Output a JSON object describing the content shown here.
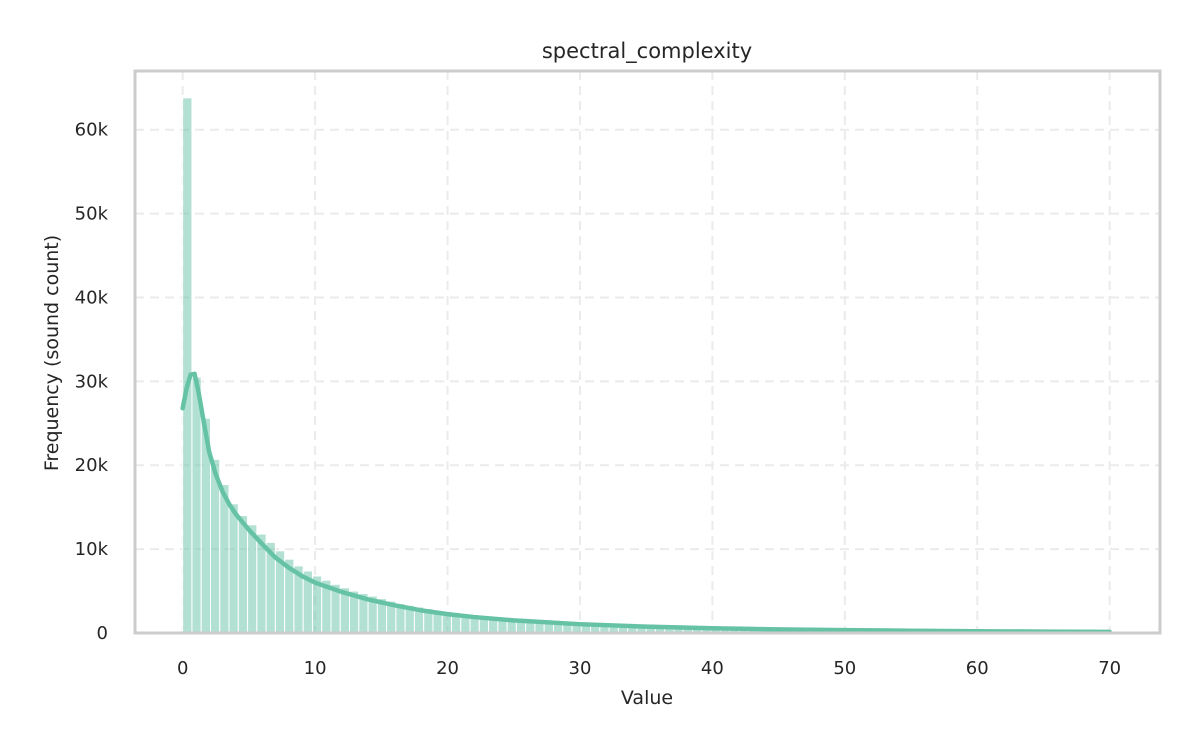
{
  "chart_data": {
    "type": "bar",
    "title": "spectral_complexity",
    "xlabel": "Value",
    "ylabel": "Frequency (sound count)",
    "xlim": [
      -3.6,
      73.8
    ],
    "ylim": [
      0,
      67000
    ],
    "x_ticks": [
      0,
      10,
      20,
      30,
      40,
      50,
      60,
      70
    ],
    "y_ticks": [
      0,
      10000,
      20000,
      30000,
      40000,
      50000,
      60000
    ],
    "y_tick_labels": [
      "0",
      "10k",
      "20k",
      "30k",
      "40k",
      "50k",
      "60k"
    ],
    "grid": true,
    "bin_start": 0,
    "bin_width": 0.7,
    "series": [
      {
        "values": [
          63800,
          30500,
          25600,
          20700,
          17700,
          15400,
          14000,
          12900,
          11800,
          10800,
          9800,
          8800,
          8000,
          7400,
          6800,
          6300,
          5800,
          5400,
          5000,
          4700,
          4400,
          4100,
          3800,
          3500,
          3300,
          3100,
          2900,
          2700,
          2550,
          2400,
          2250,
          2100,
          1980,
          1870,
          1770,
          1670,
          1580,
          1500,
          1420,
          1350,
          1280,
          1220,
          1160,
          1100,
          1040,
          990,
          940,
          890,
          850,
          810,
          770,
          735,
          700,
          670,
          640,
          612,
          585,
          560,
          536,
          513,
          491,
          470,
          450,
          432,
          414,
          397,
          381,
          366,
          351,
          337,
          324,
          311,
          299,
          287,
          276,
          265,
          255,
          245,
          236,
          227,
          218,
          210,
          202,
          195,
          188,
          181,
          175,
          169,
          163,
          157,
          152,
          147,
          142,
          137,
          133,
          128,
          124,
          120,
          116,
          112,
          108,
          105
        ]
      }
    ],
    "kde": {
      "x": [
        0,
        0.3,
        0.6,
        0.9,
        1.2,
        1.6,
        2,
        2.5,
        3,
        3.5,
        4,
        5,
        6,
        7,
        8,
        9,
        10,
        12,
        14,
        16,
        18,
        20,
        22,
        25,
        30,
        35,
        40,
        45,
        50,
        55,
        60,
        65,
        70
      ],
      "y": [
        26800,
        29200,
        30800,
        30900,
        28700,
        25100,
        21600,
        18900,
        16900,
        15400,
        14200,
        12300,
        10600,
        9000,
        7800,
        6800,
        6000,
        4900,
        4000,
        3300,
        2700,
        2250,
        1900,
        1500,
        1050,
        760,
        560,
        430,
        340,
        270,
        210,
        170,
        140
      ]
    }
  }
}
